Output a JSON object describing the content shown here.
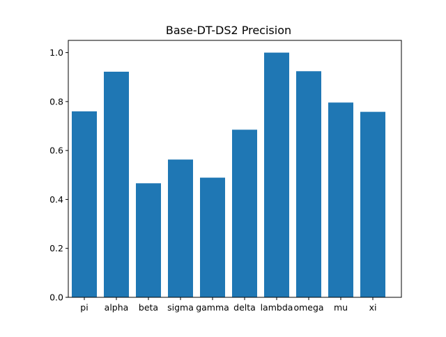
{
  "chart_data": {
    "type": "bar",
    "title": "Base-DT-DS2 Precision",
    "xlabel": "",
    "ylabel": "",
    "categories": [
      "pi",
      "alpha",
      "beta",
      "sigma",
      "gamma",
      "delta",
      "lambda",
      "omega",
      "mu",
      "xi"
    ],
    "values": [
      0.76,
      0.922,
      0.466,
      0.563,
      0.489,
      0.685,
      1.0,
      0.924,
      0.796,
      0.758
    ],
    "ylim": [
      0,
      1.05
    ],
    "yticks": [
      "0.0",
      "0.2",
      "0.4",
      "0.6",
      "0.8",
      "1.0"
    ],
    "bar_color": "#1f77b4",
    "grid": false,
    "legend": "none"
  }
}
